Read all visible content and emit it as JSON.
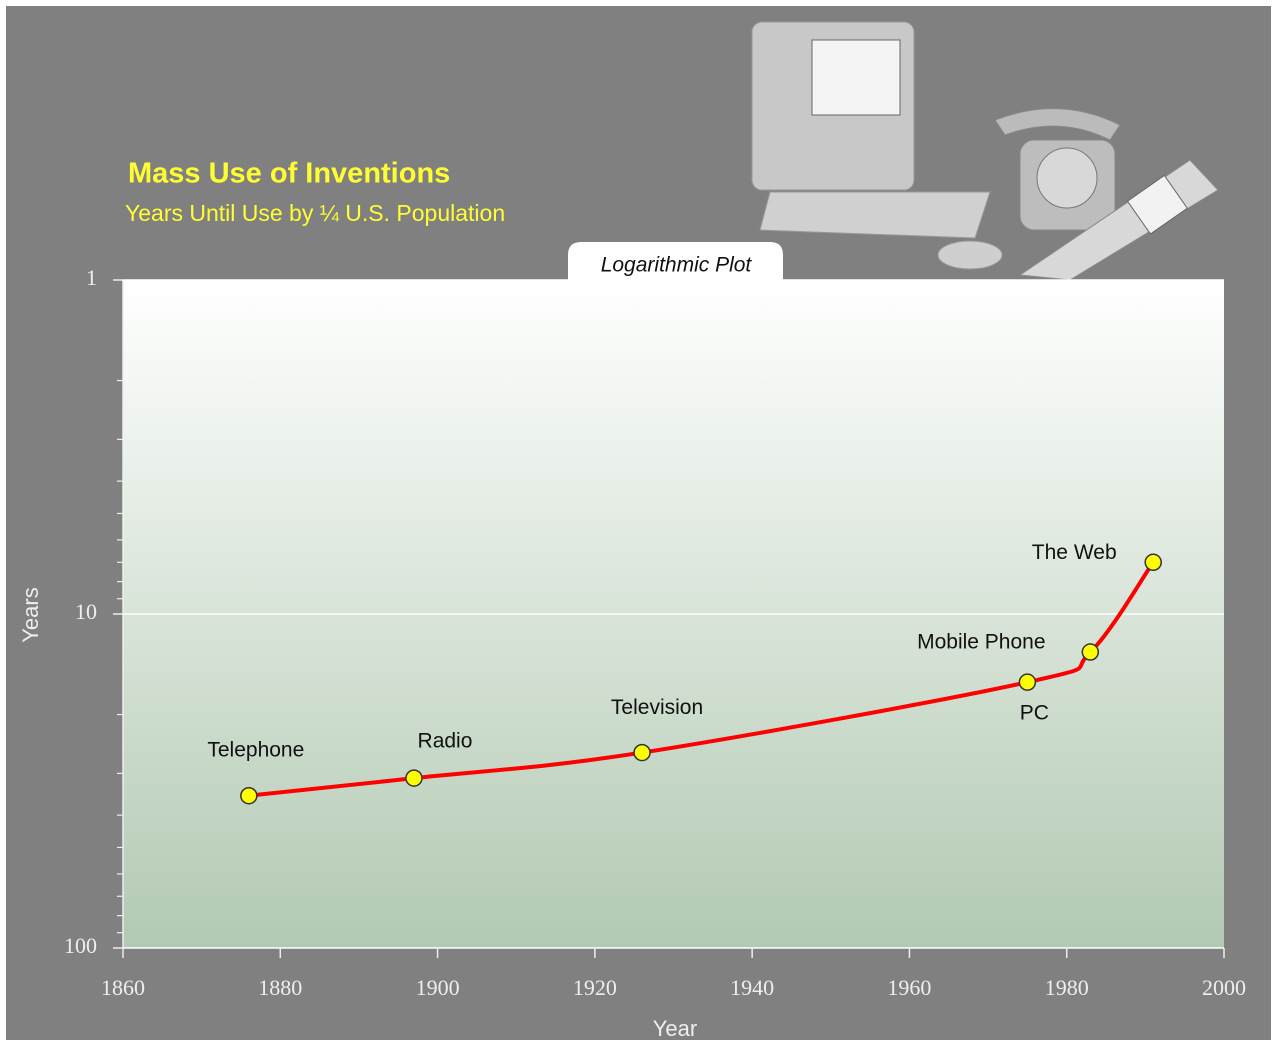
{
  "chart_data": {
    "type": "line",
    "title": "Mass Use of Inventions",
    "subtitle": "Years Until Use by ¼ U.S. Population",
    "annotation": "Logarithmic Plot",
    "x_label": "Year",
    "y_label": "Years",
    "x": [
      1876,
      1897,
      1926,
      1975,
      1983,
      1991
    ],
    "values": [
      35,
      31,
      26,
      16,
      13,
      7
    ],
    "point_labels": [
      "Telephone",
      "Radio",
      "Television",
      "PC",
      "Mobile Phone",
      "The Web"
    ],
    "color": "#ff0000",
    "marker_color": "#ffff00",
    "xlim": [
      1860,
      2000
    ],
    "xticks": [
      1860,
      1880,
      1900,
      1920,
      1940,
      1960,
      1980,
      2000
    ],
    "ylim": [
      1,
      100
    ],
    "yticks": [
      1,
      10,
      100
    ],
    "yminorticks": [
      2,
      3,
      4,
      5,
      6,
      7,
      8,
      9,
      20,
      30,
      40,
      50,
      60,
      70,
      80,
      90
    ],
    "y_log": true,
    "y_inverted": true,
    "grid": true
  }
}
